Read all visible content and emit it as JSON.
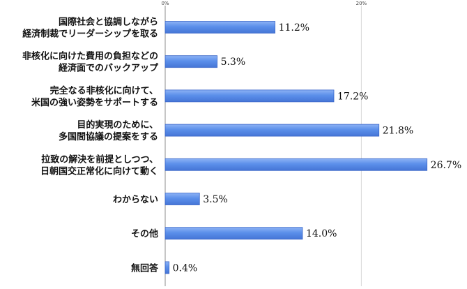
{
  "chart_data": {
    "type": "bar",
    "orientation": "horizontal",
    "categories": [
      [
        "国際社会と協調しながら",
        "経済制裁でリーダーシップを取る"
      ],
      [
        "非核化に向けた費用の負担などの",
        "経済面でのバックアップ"
      ],
      [
        "完全なる非核化に向けて、",
        "米国の強い姿勢をサポートする"
      ],
      [
        "目的実現のために、",
        "多国間協議の提案をする"
      ],
      [
        "拉致の解決を前提としつつ、",
        "日朝国交正常化に向けて動く"
      ],
      [
        "わからない"
      ],
      [
        "その他"
      ],
      [
        "無回答"
      ]
    ],
    "values": [
      11.2,
      5.3,
      17.2,
      21.8,
      26.7,
      3.5,
      14.0,
      0.4
    ],
    "value_labels": [
      "11.2%",
      "5.3%",
      "17.2%",
      "21.8%",
      "26.7%",
      "3.5%",
      "14.0%",
      "0.4%"
    ],
    "xlim": [
      0,
      30
    ],
    "ticks": [
      {
        "value": 0,
        "label": "0%"
      },
      {
        "value": 20,
        "label": "20%"
      }
    ],
    "grid": true,
    "legend": false,
    "colors": {
      "bar_fill": "#5B8FEA",
      "bar_stroke": "#3A66C8",
      "bar_shade": "#4575D6",
      "grid": "#D9D9D9",
      "axis": "#8C8C8C"
    }
  }
}
